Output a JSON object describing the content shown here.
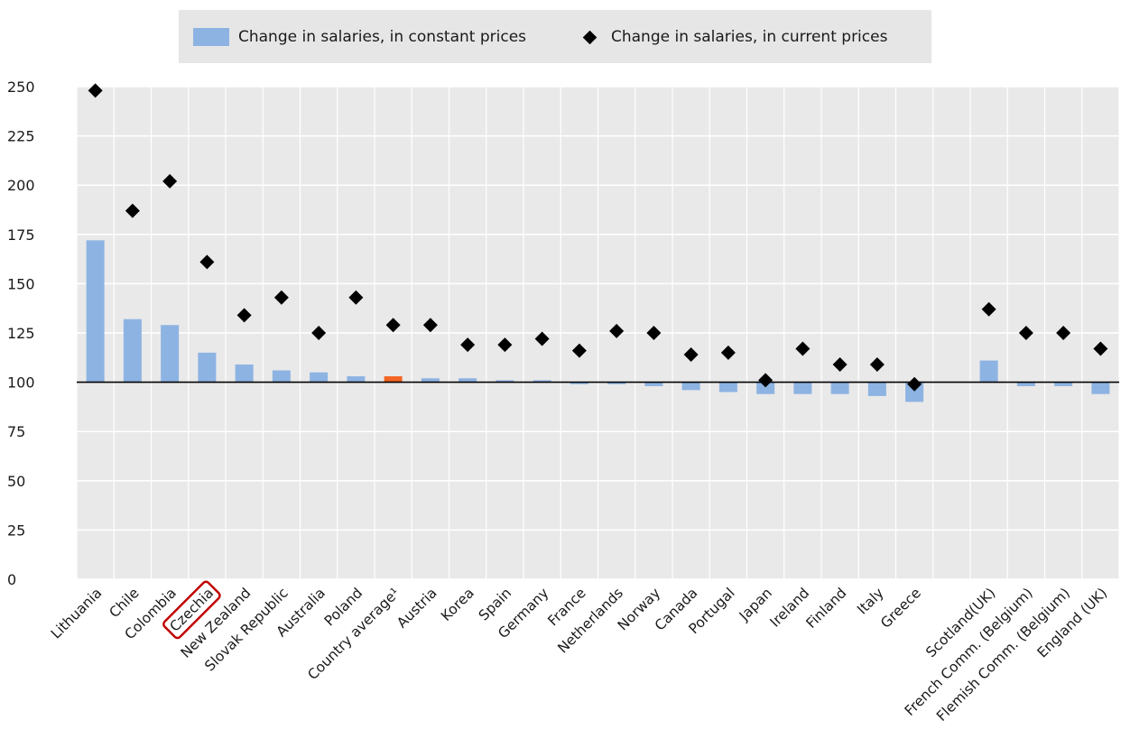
{
  "legend": {
    "constant": "Change in salaries, in constant prices",
    "current": "Change in salaries, in current prices"
  },
  "colors": {
    "bar": "#8db3e2",
    "highlight_bar": "#f26522",
    "marker": "#000000",
    "plot_bg": "#e9e9e9",
    "grid": "#ffffff",
    "czechia_box": "#c00000"
  },
  "chart_data": {
    "type": "bar",
    "categories": [
      "Lithuania",
      "Chile",
      "Colombia",
      "Czechia",
      "New Zealand",
      "Slovak Republic",
      "Australia",
      "Poland",
      "Country average¹",
      "Austria",
      "Korea",
      "Spain",
      "Germany",
      "France",
      "Netherlands",
      "Norway",
      "Canada",
      "Portugal",
      "Japan",
      "Ireland",
      "Finland",
      "Italy",
      "Greece",
      "",
      "Scotland(UK)",
      "French Comm. (Belgium)",
      "Flemish Comm. (Belgium)",
      "England (UK)"
    ],
    "series": [
      {
        "name": "Change in salaries, in constant prices",
        "type": "bar",
        "values": [
          172,
          132,
          129,
          115,
          109,
          106,
          105,
          103,
          103,
          102,
          102,
          101,
          101,
          99,
          99,
          98,
          96,
          95,
          94,
          94,
          94,
          93,
          90,
          null,
          111,
          98,
          98,
          94
        ]
      },
      {
        "name": "Change in salaries, in current prices",
        "type": "scatter",
        "values": [
          248,
          187,
          202,
          161,
          134,
          143,
          125,
          143,
          129,
          129,
          119,
          119,
          122,
          116,
          126,
          125,
          114,
          115,
          101,
          117,
          109,
          109,
          99,
          null,
          137,
          125,
          125,
          117
        ]
      }
    ],
    "highlight_index": 8,
    "boxed_category_index": 3,
    "baseline": 100,
    "yticks": [
      0,
      25,
      50,
      75,
      100,
      125,
      150,
      175,
      200,
      225,
      250
    ],
    "ylim": [
      0,
      250
    ],
    "grid": true,
    "legend_position": "top"
  }
}
